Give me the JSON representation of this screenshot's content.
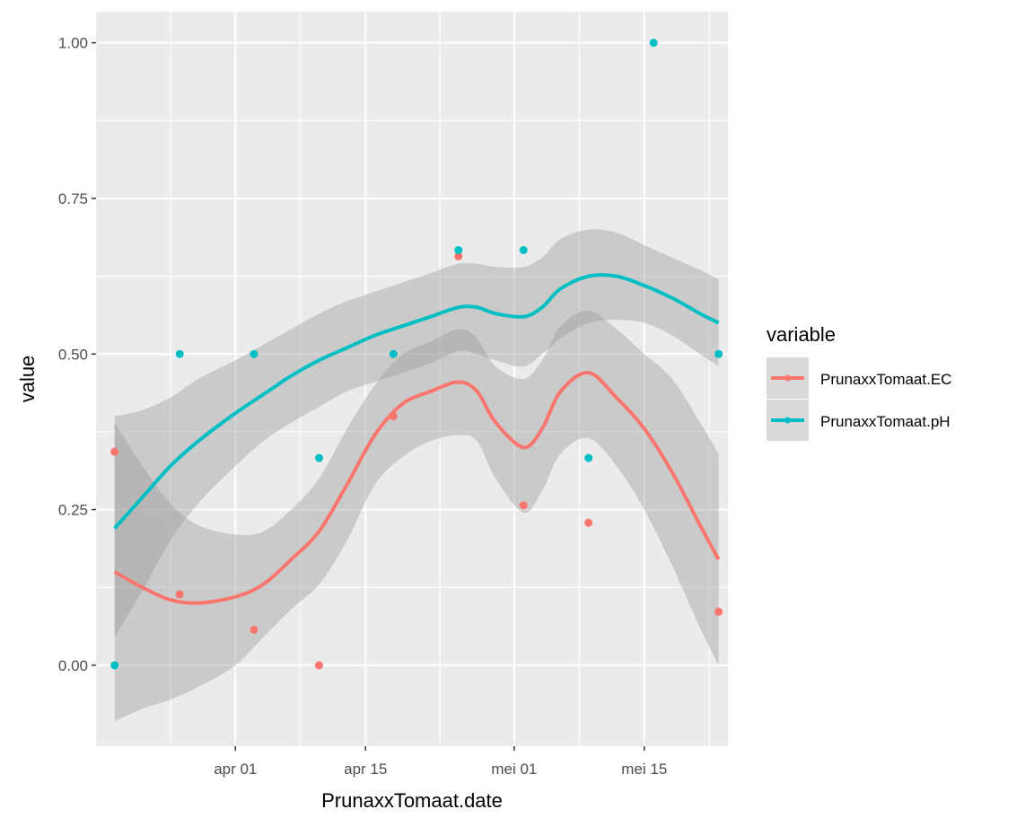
{
  "chart_data": {
    "type": "scatter",
    "title": "",
    "xlabel": "PrunaxxTomaat.date",
    "ylabel": "value",
    "x_axis_type": "date",
    "xlim": [
      "2021-03-17",
      "2021-05-24"
    ],
    "ylim": [
      -0.13,
      1.05
    ],
    "x_ticks": [
      {
        "date": "2021-04-01",
        "label": "apr 01"
      },
      {
        "date": "2021-04-15",
        "label": "apr 15"
      },
      {
        "date": "2021-05-01",
        "label": "mei 01"
      },
      {
        "date": "2021-05-15",
        "label": "mei 15"
      }
    ],
    "y_ticks": [
      {
        "value": 0.0,
        "label": "0.00"
      },
      {
        "value": 0.25,
        "label": "0.25"
      },
      {
        "value": 0.5,
        "label": "0.50"
      },
      {
        "value": 0.75,
        "label": "0.75"
      },
      {
        "value": 1.0,
        "label": "1.00"
      }
    ],
    "grid": true,
    "legend": {
      "title": "variable",
      "position": "right"
    },
    "series": [
      {
        "name": "PrunaxxTomaat.EC",
        "color": "#F8766D",
        "points": [
          {
            "x": "2021-03-19",
            "y": 0.343
          },
          {
            "x": "2021-03-26",
            "y": 0.114
          },
          {
            "x": "2021-04-03",
            "y": 0.057
          },
          {
            "x": "2021-04-10",
            "y": 0.0
          },
          {
            "x": "2021-04-18",
            "y": 0.4
          },
          {
            "x": "2021-04-25",
            "y": 0.657
          },
          {
            "x": "2021-05-02",
            "y": 0.257
          },
          {
            "x": "2021-05-09",
            "y": 0.229
          },
          {
            "x": "2021-05-23",
            "y": 0.086
          }
        ],
        "smooth": [
          {
            "x": "2021-03-19",
            "y": 0.15,
            "lo": -0.09,
            "hi": 0.39
          },
          {
            "x": "2021-03-22",
            "y": 0.125,
            "lo": -0.07,
            "hi": 0.32
          },
          {
            "x": "2021-03-25",
            "y": 0.105,
            "lo": -0.055,
            "hi": 0.26
          },
          {
            "x": "2021-03-28",
            "y": 0.1,
            "lo": -0.035,
            "hi": 0.225
          },
          {
            "x": "2021-04-01",
            "y": 0.11,
            "lo": 0.0,
            "hi": 0.21
          },
          {
            "x": "2021-04-04",
            "y": 0.13,
            "lo": 0.045,
            "hi": 0.215
          },
          {
            "x": "2021-04-07",
            "y": 0.17,
            "lo": 0.09,
            "hi": 0.25
          },
          {
            "x": "2021-04-10",
            "y": 0.215,
            "lo": 0.13,
            "hi": 0.3
          },
          {
            "x": "2021-04-13",
            "y": 0.29,
            "lo": 0.2,
            "hi": 0.38
          },
          {
            "x": "2021-04-16",
            "y": 0.37,
            "lo": 0.29,
            "hi": 0.45
          },
          {
            "x": "2021-04-19",
            "y": 0.42,
            "lo": 0.335,
            "hi": 0.5
          },
          {
            "x": "2021-04-22",
            "y": 0.44,
            "lo": 0.36,
            "hi": 0.52
          },
          {
            "x": "2021-04-25",
            "y": 0.455,
            "lo": 0.37,
            "hi": 0.54
          },
          {
            "x": "2021-04-27",
            "y": 0.44,
            "lo": 0.36,
            "hi": 0.525
          },
          {
            "x": "2021-04-29",
            "y": 0.39,
            "lo": 0.3,
            "hi": 0.48
          },
          {
            "x": "2021-05-02",
            "y": 0.35,
            "lo": 0.245,
            "hi": 0.46
          },
          {
            "x": "2021-05-04",
            "y": 0.38,
            "lo": 0.28,
            "hi": 0.49
          },
          {
            "x": "2021-05-06",
            "y": 0.44,
            "lo": 0.34,
            "hi": 0.545
          },
          {
            "x": "2021-05-09",
            "y": 0.47,
            "lo": 0.365,
            "hi": 0.57
          },
          {
            "x": "2021-05-12",
            "y": 0.43,
            "lo": 0.32,
            "hi": 0.54
          },
          {
            "x": "2021-05-15",
            "y": 0.38,
            "lo": 0.25,
            "hi": 0.5
          },
          {
            "x": "2021-05-18",
            "y": 0.31,
            "lo": 0.16,
            "hi": 0.46
          },
          {
            "x": "2021-05-21",
            "y": 0.225,
            "lo": 0.06,
            "hi": 0.39
          },
          {
            "x": "2021-05-23",
            "y": 0.17,
            "lo": 0.0,
            "hi": 0.34
          }
        ]
      },
      {
        "name": "PrunaxxTomaat.pH",
        "color": "#00BFC4",
        "points": [
          {
            "x": "2021-03-19",
            "y": 0.0
          },
          {
            "x": "2021-03-26",
            "y": 0.5
          },
          {
            "x": "2021-04-03",
            "y": 0.5
          },
          {
            "x": "2021-04-10",
            "y": 0.333
          },
          {
            "x": "2021-04-18",
            "y": 0.5
          },
          {
            "x": "2021-04-25",
            "y": 0.667
          },
          {
            "x": "2021-05-02",
            "y": 0.667
          },
          {
            "x": "2021-05-09",
            "y": 0.333
          },
          {
            "x": "2021-05-16",
            "y": 1.0
          },
          {
            "x": "2021-05-23",
            "y": 0.5
          }
        ],
        "smooth": [
          {
            "x": "2021-03-19",
            "y": 0.22,
            "lo": 0.045,
            "hi": 0.4
          },
          {
            "x": "2021-03-22",
            "y": 0.27,
            "lo": 0.12,
            "hi": 0.41
          },
          {
            "x": "2021-03-25",
            "y": 0.32,
            "lo": 0.2,
            "hi": 0.43
          },
          {
            "x": "2021-03-28",
            "y": 0.36,
            "lo": 0.26,
            "hi": 0.46
          },
          {
            "x": "2021-04-01",
            "y": 0.405,
            "lo": 0.32,
            "hi": 0.49
          },
          {
            "x": "2021-04-04",
            "y": 0.435,
            "lo": 0.36,
            "hi": 0.515
          },
          {
            "x": "2021-04-07",
            "y": 0.465,
            "lo": 0.39,
            "hi": 0.54
          },
          {
            "x": "2021-04-10",
            "y": 0.49,
            "lo": 0.415,
            "hi": 0.565
          },
          {
            "x": "2021-04-13",
            "y": 0.51,
            "lo": 0.44,
            "hi": 0.585
          },
          {
            "x": "2021-04-16",
            "y": 0.53,
            "lo": 0.455,
            "hi": 0.6
          },
          {
            "x": "2021-04-19",
            "y": 0.545,
            "lo": 0.47,
            "hi": 0.615
          },
          {
            "x": "2021-04-22",
            "y": 0.56,
            "lo": 0.485,
            "hi": 0.63
          },
          {
            "x": "2021-04-25",
            "y": 0.575,
            "lo": 0.505,
            "hi": 0.645
          },
          {
            "x": "2021-04-27",
            "y": 0.575,
            "lo": 0.5,
            "hi": 0.645
          },
          {
            "x": "2021-04-29",
            "y": 0.565,
            "lo": 0.49,
            "hi": 0.64
          },
          {
            "x": "2021-05-02",
            "y": 0.56,
            "lo": 0.48,
            "hi": 0.64
          },
          {
            "x": "2021-05-04",
            "y": 0.575,
            "lo": 0.5,
            "hi": 0.655
          },
          {
            "x": "2021-05-06",
            "y": 0.605,
            "lo": 0.525,
            "hi": 0.685
          },
          {
            "x": "2021-05-09",
            "y": 0.625,
            "lo": 0.55,
            "hi": 0.7
          },
          {
            "x": "2021-05-12",
            "y": 0.625,
            "lo": 0.555,
            "hi": 0.695
          },
          {
            "x": "2021-05-15",
            "y": 0.61,
            "lo": 0.55,
            "hi": 0.675
          },
          {
            "x": "2021-05-18",
            "y": 0.59,
            "lo": 0.53,
            "hi": 0.655
          },
          {
            "x": "2021-05-21",
            "y": 0.565,
            "lo": 0.5,
            "hi": 0.635
          },
          {
            "x": "2021-05-23",
            "y": 0.55,
            "lo": 0.48,
            "hi": 0.62
          }
        ]
      }
    ]
  }
}
